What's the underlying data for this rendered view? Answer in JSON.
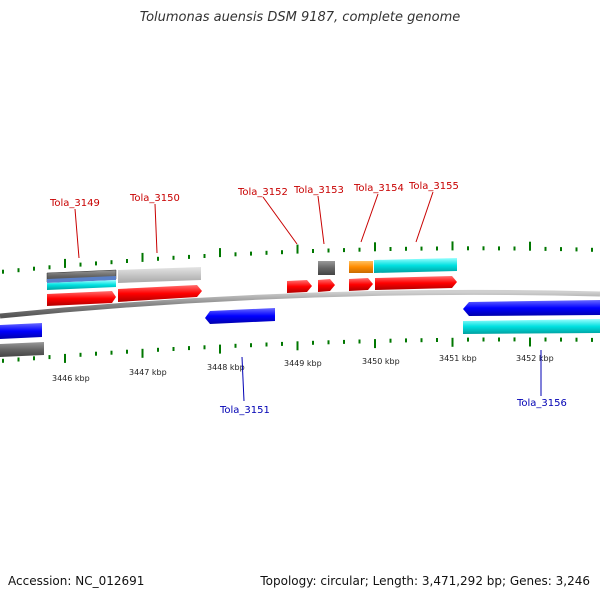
{
  "title": "Tolumonas auensis DSM 9187, complete genome",
  "footer": {
    "accession": "Accession: NC_012691",
    "topology": "Topology: circular; Length: 3,471,292 bp; Genes: 3,246"
  },
  "colors": {
    "cds_forward": "#ff0000",
    "cds_reverse": "#0000ff",
    "gene_label_forward": "#c80000",
    "gene_label_reverse": "#0000b4",
    "tick": "#007700",
    "backbone": "#8a8a8a",
    "feature_cyan": "#00dddd",
    "feature_gray": "#6a6a6a",
    "feature_lightgray": "#c8c8c8",
    "feature_orange": "#ff8c00"
  },
  "scale_labels": [
    "3446 kbp",
    "3447 kbp",
    "3448 kbp",
    "3449 kbp",
    "3450 kbp",
    "3451 kbp",
    "3452 kbp"
  ],
  "genes_top": [
    "Tola_3149",
    "Tola_3150",
    "Tola_3152",
    "Tola_3153",
    "Tola_3154",
    "Tola_3155"
  ],
  "genes_bottom": [
    "Tola_3151",
    "Tola_3156"
  ]
}
